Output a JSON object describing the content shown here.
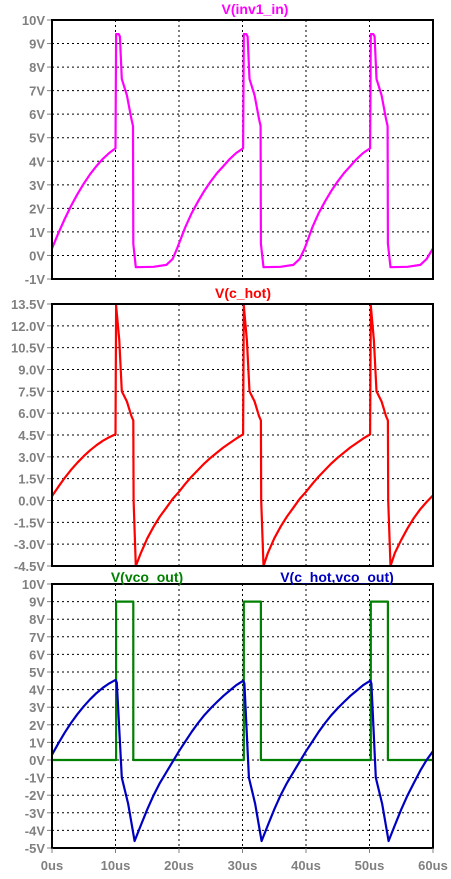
{
  "chart_data": [
    {
      "type": "line",
      "title": "",
      "ylim": [
        -1,
        10
      ],
      "yticks": [
        "10V",
        "9V",
        "8V",
        "7V",
        "6V",
        "5V",
        "4V",
        "3V",
        "2V",
        "1V",
        "0V",
        "-1V"
      ],
      "ytick_values": [
        10,
        9,
        8,
        7,
        6,
        5,
        4,
        3,
        2,
        1,
        0,
        -1
      ],
      "xlim": [
        0,
        60
      ],
      "series": [
        {
          "name": "V(inv1_in)",
          "color": "#ff00ff",
          "points": [
            [
              0,
              0.3
            ],
            [
              1,
              0.95
            ],
            [
              2,
              1.55
            ],
            [
              3,
              2.1
            ],
            [
              4,
              2.6
            ],
            [
              5,
              3.05
            ],
            [
              6,
              3.45
            ],
            [
              7,
              3.8
            ],
            [
              8,
              4.1
            ],
            [
              9,
              4.35
            ],
            [
              10,
              4.55
            ],
            [
              10.1,
              9.4
            ],
            [
              10.5,
              9.4
            ],
            [
              10.7,
              9.3
            ],
            [
              11,
              7.5
            ],
            [
              11.8,
              6.8
            ],
            [
              12.5,
              5.8
            ],
            [
              12.75,
              5.5
            ],
            [
              12.8,
              0.5
            ],
            [
              13.2,
              -0.5
            ],
            [
              16,
              -0.48
            ],
            [
              18,
              -0.4
            ],
            [
              19,
              -0.15
            ],
            [
              19.7,
              0.3
            ],
            [
              21,
              1.2
            ],
            [
              22,
              1.8
            ],
            [
              23,
              2.3
            ],
            [
              24,
              2.75
            ],
            [
              25,
              3.15
            ],
            [
              26,
              3.5
            ],
            [
              27,
              3.8
            ],
            [
              28,
              4.1
            ],
            [
              29,
              4.35
            ],
            [
              30.1,
              4.55
            ],
            [
              30.2,
              9.4
            ],
            [
              30.6,
              9.4
            ],
            [
              30.8,
              9.3
            ],
            [
              31.1,
              7.5
            ],
            [
              31.9,
              6.8
            ],
            [
              32.6,
              5.8
            ],
            [
              32.85,
              5.5
            ],
            [
              32.9,
              0.5
            ],
            [
              33.3,
              -0.5
            ],
            [
              36,
              -0.48
            ],
            [
              38,
              -0.4
            ],
            [
              39,
              -0.15
            ],
            [
              39.8,
              0.3
            ],
            [
              41,
              1.2
            ],
            [
              42,
              1.8
            ],
            [
              43,
              2.3
            ],
            [
              44,
              2.75
            ],
            [
              45,
              3.15
            ],
            [
              46,
              3.5
            ],
            [
              47,
              3.8
            ],
            [
              48,
              4.1
            ],
            [
              49,
              4.35
            ],
            [
              50.1,
              4.55
            ],
            [
              50.2,
              9.4
            ],
            [
              50.6,
              9.4
            ],
            [
              50.8,
              9.3
            ],
            [
              51.1,
              7.5
            ],
            [
              51.9,
              6.8
            ],
            [
              52.6,
              5.8
            ],
            [
              52.85,
              5.5
            ],
            [
              52.9,
              0.5
            ],
            [
              53.3,
              -0.5
            ],
            [
              56,
              -0.48
            ],
            [
              58,
              -0.4
            ],
            [
              59,
              -0.15
            ],
            [
              60,
              0.3
            ]
          ]
        }
      ]
    },
    {
      "type": "line",
      "title": "",
      "ylim": [
        -4.5,
        13.5
      ],
      "yticks": [
        "13.5V",
        "12.0V",
        "10.5V",
        "9.0V",
        "7.5V",
        "6.0V",
        "4.5V",
        "3.0V",
        "1.5V",
        "0.0V",
        "-1.5V",
        "-3.0V",
        "-4.5V"
      ],
      "ytick_values": [
        13.5,
        12,
        10.5,
        9,
        7.5,
        6,
        4.5,
        3,
        1.5,
        0,
        -1.5,
        -3,
        -4.5
      ],
      "xlim": [
        0,
        60
      ],
      "series": [
        {
          "name": "V(c_hot)",
          "color": "#ff0000",
          "points": [
            [
              0,
              0.3
            ],
            [
              1,
              0.95
            ],
            [
              2,
              1.55
            ],
            [
              3,
              2.1
            ],
            [
              4,
              2.6
            ],
            [
              5,
              3.05
            ],
            [
              6,
              3.45
            ],
            [
              7,
              3.8
            ],
            [
              8,
              4.1
            ],
            [
              9,
              4.35
            ],
            [
              10,
              4.55
            ],
            [
              10.1,
              13.4
            ],
            [
              10.6,
              11
            ],
            [
              11,
              7.5
            ],
            [
              11.8,
              6.8
            ],
            [
              12.5,
              5.8
            ],
            [
              12.8,
              5.5
            ],
            [
              12.85,
              0
            ],
            [
              13.2,
              -4.5
            ],
            [
              14,
              -3.6
            ],
            [
              15,
              -2.6
            ],
            [
              16,
              -1.8
            ],
            [
              17,
              -1.1
            ],
            [
              18,
              -0.5
            ],
            [
              19,
              0.1
            ],
            [
              20,
              0.6
            ],
            [
              21,
              1.15
            ],
            [
              22,
              1.65
            ],
            [
              23,
              2.1
            ],
            [
              24,
              2.55
            ],
            [
              25,
              2.95
            ],
            [
              26,
              3.3
            ],
            [
              27,
              3.65
            ],
            [
              28,
              3.95
            ],
            [
              29,
              4.25
            ],
            [
              30.1,
              4.55
            ],
            [
              30.2,
              13.4
            ],
            [
              30.7,
              11
            ],
            [
              31.1,
              7.5
            ],
            [
              31.9,
              6.8
            ],
            [
              32.6,
              5.8
            ],
            [
              32.9,
              5.5
            ],
            [
              32.95,
              0
            ],
            [
              33.3,
              -4.5
            ],
            [
              34,
              -3.6
            ],
            [
              35,
              -2.6
            ],
            [
              36,
              -1.8
            ],
            [
              37,
              -1.1
            ],
            [
              38,
              -0.5
            ],
            [
              39,
              0.1
            ],
            [
              40,
              0.6
            ],
            [
              41,
              1.15
            ],
            [
              42,
              1.65
            ],
            [
              43,
              2.1
            ],
            [
              44,
              2.55
            ],
            [
              45,
              2.95
            ],
            [
              46,
              3.3
            ],
            [
              47,
              3.65
            ],
            [
              48,
              3.95
            ],
            [
              49,
              4.25
            ],
            [
              50.1,
              4.55
            ],
            [
              50.2,
              13.4
            ],
            [
              50.7,
              11
            ],
            [
              51.1,
              7.5
            ],
            [
              51.9,
              6.8
            ],
            [
              52.6,
              5.8
            ],
            [
              52.9,
              5.5
            ],
            [
              52.95,
              0
            ],
            [
              53.3,
              -4.5
            ],
            [
              54,
              -3.6
            ],
            [
              55,
              -2.7
            ],
            [
              56,
              -1.9
            ],
            [
              57,
              -1.2
            ],
            [
              58,
              -0.6
            ],
            [
              59,
              -0.1
            ],
            [
              60,
              0.35
            ]
          ]
        }
      ]
    },
    {
      "type": "line",
      "title": "",
      "ylim": [
        -5,
        10
      ],
      "yticks": [
        "10V",
        "9V",
        "8V",
        "7V",
        "6V",
        "5V",
        "4V",
        "3V",
        "2V",
        "1V",
        "0V",
        "-1V",
        "-2V",
        "-3V",
        "-4V",
        "-5V"
      ],
      "ytick_values": [
        10,
        9,
        8,
        7,
        6,
        5,
        4,
        3,
        2,
        1,
        0,
        -1,
        -2,
        -3,
        -4,
        -5
      ],
      "xlim": [
        0,
        60
      ],
      "xticks": [
        "0us",
        "10us",
        "20us",
        "30us",
        "40us",
        "50us",
        "60us"
      ],
      "xtick_values": [
        0,
        10,
        20,
        30,
        40,
        50,
        60
      ],
      "series": [
        {
          "name": "V(vco_out)",
          "color": "#008000",
          "points": [
            [
              0,
              0
            ],
            [
              10.1,
              0
            ],
            [
              10.1,
              9
            ],
            [
              12.8,
              9
            ],
            [
              12.8,
              0
            ],
            [
              30.2,
              0
            ],
            [
              30.2,
              9
            ],
            [
              32.9,
              9
            ],
            [
              32.9,
              0
            ],
            [
              50.2,
              0
            ],
            [
              50.2,
              9
            ],
            [
              52.9,
              9
            ],
            [
              52.9,
              0
            ],
            [
              60,
              0
            ]
          ]
        },
        {
          "name": "V(c_hot,vco_out)",
          "color": "#0000c0",
          "points": [
            [
              0,
              0.3
            ],
            [
              1,
              0.95
            ],
            [
              2,
              1.55
            ],
            [
              3,
              2.1
            ],
            [
              4,
              2.6
            ],
            [
              5,
              3.05
            ],
            [
              6,
              3.45
            ],
            [
              7,
              3.8
            ],
            [
              8,
              4.1
            ],
            [
              9,
              4.35
            ],
            [
              10,
              4.55
            ],
            [
              10.2,
              4.4
            ],
            [
              11,
              -1
            ],
            [
              12,
              -2.5
            ],
            [
              13,
              -4.6
            ],
            [
              14,
              -3.7
            ],
            [
              15,
              -2.8
            ],
            [
              16,
              -2.0
            ],
            [
              17,
              -1.3
            ],
            [
              18,
              -0.7
            ],
            [
              19,
              -0.1
            ],
            [
              20,
              0.5
            ],
            [
              21,
              1.05
            ],
            [
              22,
              1.6
            ],
            [
              23,
              2.1
            ],
            [
              24,
              2.55
            ],
            [
              25,
              2.95
            ],
            [
              26,
              3.3
            ],
            [
              27,
              3.65
            ],
            [
              28,
              3.95
            ],
            [
              29,
              4.25
            ],
            [
              30.1,
              4.5
            ],
            [
              30.3,
              4.35
            ],
            [
              31,
              -1
            ],
            [
              32,
              -2.5
            ],
            [
              33,
              -4.6
            ],
            [
              34,
              -3.7
            ],
            [
              35,
              -2.8
            ],
            [
              36,
              -2.0
            ],
            [
              37,
              -1.3
            ],
            [
              38,
              -0.7
            ],
            [
              39,
              -0.1
            ],
            [
              40,
              0.5
            ],
            [
              41,
              1.05
            ],
            [
              42,
              1.6
            ],
            [
              43,
              2.1
            ],
            [
              44,
              2.55
            ],
            [
              45,
              2.95
            ],
            [
              46,
              3.3
            ],
            [
              47,
              3.65
            ],
            [
              48,
              3.95
            ],
            [
              49,
              4.25
            ],
            [
              50.1,
              4.5
            ],
            [
              50.3,
              4.35
            ],
            [
              51,
              -1
            ],
            [
              52,
              -2.5
            ],
            [
              53,
              -4.6
            ],
            [
              54,
              -3.7
            ],
            [
              55,
              -2.8
            ],
            [
              56,
              -2.0
            ],
            [
              57,
              -1.3
            ],
            [
              58,
              -0.6
            ],
            [
              59,
              0
            ],
            [
              60,
              0.5
            ]
          ]
        }
      ]
    }
  ]
}
